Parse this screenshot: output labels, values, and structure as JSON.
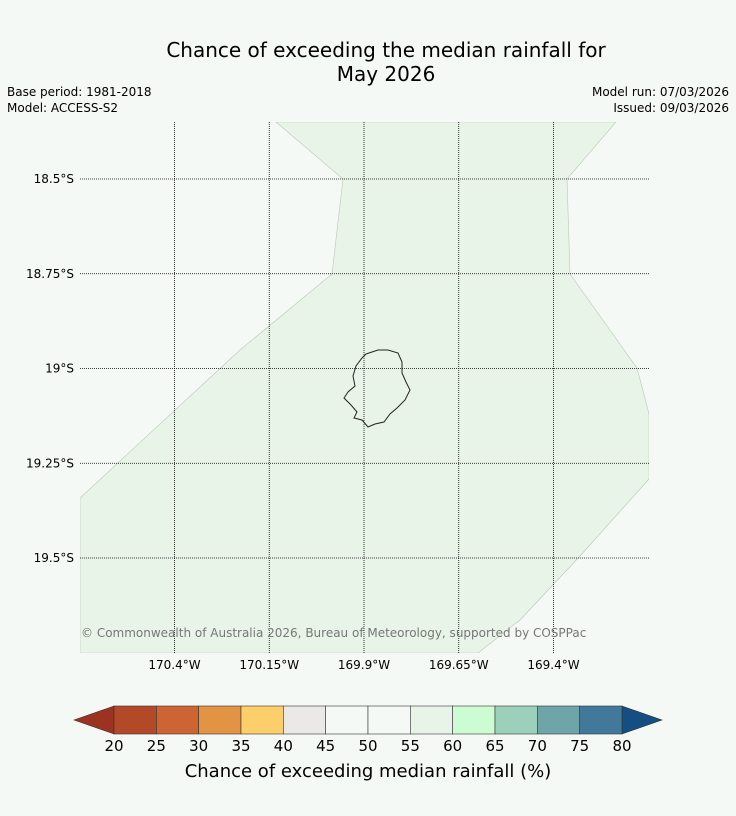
{
  "header": {
    "title_line1": "Chance of exceeding the median rainfall for",
    "title_line2": "May 2026",
    "base_period": "Base period: 1981-2018",
    "model": "Model: ACCESS-S2",
    "model_run": "Model run: 07/03/2026",
    "issued": "Issued: 09/03/2026"
  },
  "map": {
    "lat_labels": [
      "18.5°S",
      "18.75°S",
      "19°S",
      "19.25°S",
      "19.5°S"
    ],
    "lon_labels": [
      "170.4°W",
      "170.15°W",
      "169.9°W",
      "169.65°W",
      "169.4°W"
    ],
    "lat_values": [
      -18.5,
      -18.75,
      -19.0,
      -19.25,
      -19.5
    ],
    "lon_values": [
      -170.4,
      -170.15,
      -169.9,
      -169.65,
      -169.4
    ],
    "region_category": "55-60",
    "copyright": "© Commonwealth of Australia 2026, Bureau of Meteorology, supported by COSPPac"
  },
  "colorbar": {
    "label": "Chance of exceeding median rainfall (%)",
    "ticks": [
      "20",
      "25",
      "30",
      "35",
      "40",
      "45",
      "50",
      "55",
      "60",
      "65",
      "70",
      "75",
      "80"
    ],
    "below_color": "#9c3320",
    "above_color": "#154e82",
    "colors": [
      "#b24a27",
      "#cd6532",
      "#e29344",
      "#fccf6b",
      "#ebe9e5",
      "#f5f9f5",
      "#f5f9f5",
      "#e8f4e8",
      "#ccfcd1",
      "#9dd0bb",
      "#6ea5a8",
      "#42799b"
    ]
  },
  "colors": {
    "background": "#f5f9f5",
    "region_fill": "#e8f4e8"
  }
}
